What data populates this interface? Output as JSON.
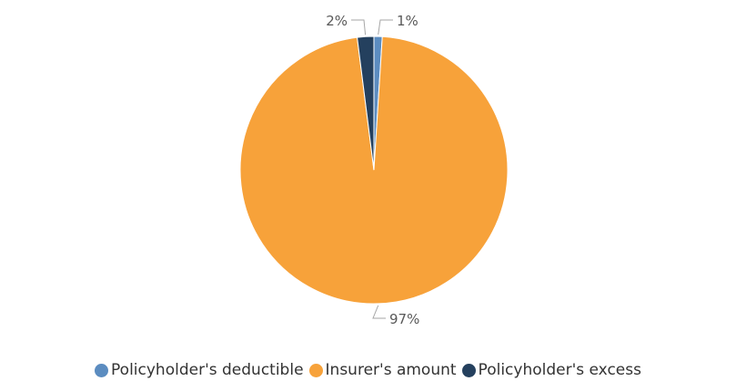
{
  "chart_data": {
    "type": "pie",
    "slices": [
      {
        "name": "Policyholder's deductible",
        "value": 1,
        "label": "1%",
        "color": "#5b8cc0"
      },
      {
        "name": "Insurer's amount",
        "value": 97,
        "label": "97%",
        "color": "#f7a23a"
      },
      {
        "name": "Policyholder's excess",
        "value": 2,
        "label": "2%",
        "color": "#24405e"
      }
    ],
    "legend_position": "bottom"
  }
}
